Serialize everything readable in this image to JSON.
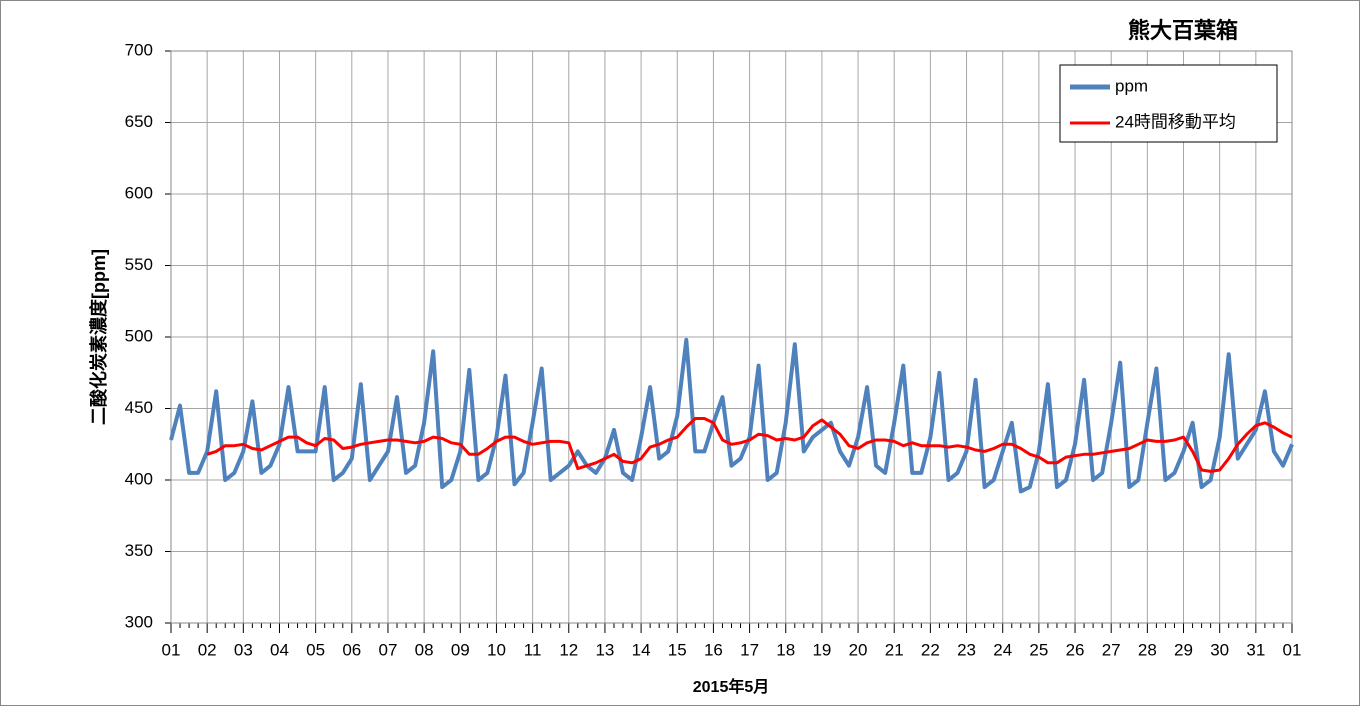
{
  "chart_data": {
    "type": "line",
    "title": "熊大百葉箱",
    "xlabel": "2015年5月",
    "ylabel": "二酸化炭素濃度[ppm]",
    "x": [
      0,
      0.25,
      0.5,
      0.75,
      1,
      1.25,
      1.5,
      1.75,
      2,
      2.25,
      2.5,
      2.75,
      3,
      3.25,
      3.5,
      3.75,
      4,
      4.25,
      4.5,
      4.75,
      5,
      5.25,
      5.5,
      5.75,
      6,
      6.25,
      6.5,
      6.75,
      7,
      7.25,
      7.5,
      7.75,
      8,
      8.25,
      8.5,
      8.75,
      9,
      9.25,
      9.5,
      9.75,
      10,
      10.25,
      10.5,
      10.75,
      11,
      11.25,
      11.5,
      11.75,
      12,
      12.25,
      12.5,
      12.75,
      13,
      13.25,
      13.5,
      13.75,
      14,
      14.25,
      14.5,
      14.75,
      15,
      15.25,
      15.5,
      15.75,
      16,
      16.25,
      16.5,
      16.75,
      17,
      17.25,
      17.5,
      17.75,
      18,
      18.25,
      18.5,
      18.75,
      19,
      19.25,
      19.5,
      19.75,
      20,
      20.25,
      20.5,
      20.75,
      21,
      21.25,
      21.5,
      21.75,
      22,
      22.25,
      22.5,
      22.75,
      23,
      23.25,
      23.5,
      23.75,
      24,
      24.25,
      24.5,
      24.75,
      25,
      25.25,
      25.5,
      25.75,
      26,
      26.25,
      26.5,
      26.75,
      27,
      27.25,
      27.5,
      27.75,
      28,
      28.25,
      28.5,
      28.75,
      29,
      29.25,
      29.5,
      29.75,
      30,
      30.25,
      30.5,
      30.75,
      31
    ],
    "series": [
      {
        "name": "ppm",
        "color": "#4f81bd",
        "values": [
          428,
          452,
          405,
          405,
          420,
          462,
          400,
          405,
          420,
          455,
          405,
          410,
          425,
          465,
          420,
          420,
          420,
          465,
          400,
          405,
          415,
          467,
          400,
          410,
          420,
          458,
          405,
          410,
          440,
          490,
          395,
          400,
          420,
          477,
          400,
          405,
          430,
          473,
          397,
          405,
          440,
          478,
          400,
          405,
          410,
          420,
          410,
          405,
          415,
          435,
          405,
          400,
          430,
          465,
          415,
          420,
          445,
          498,
          420,
          420,
          440,
          458,
          410,
          415,
          430,
          480,
          400,
          405,
          440,
          495,
          420,
          430,
          435,
          440,
          420,
          410,
          430,
          465,
          410,
          405,
          440,
          480,
          405,
          405,
          430,
          475,
          400,
          405,
          420,
          470,
          395,
          400,
          420,
          440,
          392,
          395,
          420,
          467,
          395,
          400,
          425,
          470,
          400,
          405,
          440,
          482,
          395,
          400,
          440,
          478,
          400,
          405,
          420,
          440,
          395,
          400,
          430,
          488,
          415,
          425,
          435,
          462,
          420,
          410,
          425
        ]
      },
      {
        "name": "24時間移動平均",
        "color": "#ff0000",
        "values": [
          null,
          null,
          null,
          null,
          418,
          420,
          424,
          424,
          425,
          422,
          421,
          424,
          427,
          430,
          430,
          426,
          424,
          429,
          428,
          422,
          423,
          425,
          426,
          427,
          428,
          428,
          427,
          426,
          427,
          430,
          429,
          426,
          425,
          418,
          418,
          422,
          427,
          430,
          430,
          427,
          425,
          426,
          427,
          427,
          426,
          408,
          410,
          412,
          415,
          418,
          413,
          412,
          415,
          423,
          425,
          428,
          430,
          437,
          443,
          443,
          440,
          428,
          425,
          426,
          428,
          432,
          431,
          428,
          429,
          428,
          430,
          438,
          442,
          437,
          432,
          424,
          422,
          426,
          428,
          428,
          427,
          424,
          426,
          424,
          424,
          424,
          423,
          424,
          423,
          421,
          420,
          422,
          425,
          425,
          422,
          418,
          416,
          412,
          412,
          416,
          417,
          418,
          418,
          419,
          420,
          421,
          422,
          425,
          428,
          427,
          427,
          428,
          430,
          420,
          407,
          406,
          407,
          415,
          425,
          432,
          438,
          440,
          437,
          433,
          430
        ]
      }
    ],
    "xlim": [
      0,
      31
    ],
    "xticks": [
      {
        "value": 0,
        "label": "01"
      },
      {
        "value": 1,
        "label": "02"
      },
      {
        "value": 2,
        "label": "03"
      },
      {
        "value": 3,
        "label": "04"
      },
      {
        "value": 4,
        "label": "05"
      },
      {
        "value": 5,
        "label": "06"
      },
      {
        "value": 6,
        "label": "07"
      },
      {
        "value": 7,
        "label": "08"
      },
      {
        "value": 8,
        "label": "09"
      },
      {
        "value": 9,
        "label": "10"
      },
      {
        "value": 10,
        "label": "11"
      },
      {
        "value": 11,
        "label": "12"
      },
      {
        "value": 12,
        "label": "13"
      },
      {
        "value": 13,
        "label": "14"
      },
      {
        "value": 14,
        "label": "15"
      },
      {
        "value": 15,
        "label": "16"
      },
      {
        "value": 16,
        "label": "17"
      },
      {
        "value": 17,
        "label": "18"
      },
      {
        "value": 18,
        "label": "19"
      },
      {
        "value": 19,
        "label": "20"
      },
      {
        "value": 20,
        "label": "21"
      },
      {
        "value": 21,
        "label": "22"
      },
      {
        "value": 22,
        "label": "23"
      },
      {
        "value": 23,
        "label": "24"
      },
      {
        "value": 24,
        "label": "25"
      },
      {
        "value": 25,
        "label": "26"
      },
      {
        "value": 26,
        "label": "27"
      },
      {
        "value": 27,
        "label": "28"
      },
      {
        "value": 28,
        "label": "29"
      },
      {
        "value": 29,
        "label": "30"
      },
      {
        "value": 30,
        "label": "31"
      },
      {
        "value": 31,
        "label": "01"
      }
    ],
    "ylim": [
      300,
      700
    ],
    "yticks": [
      300,
      350,
      400,
      450,
      500,
      550,
      600,
      650,
      700
    ],
    "grid": true,
    "legend": "upper right"
  }
}
